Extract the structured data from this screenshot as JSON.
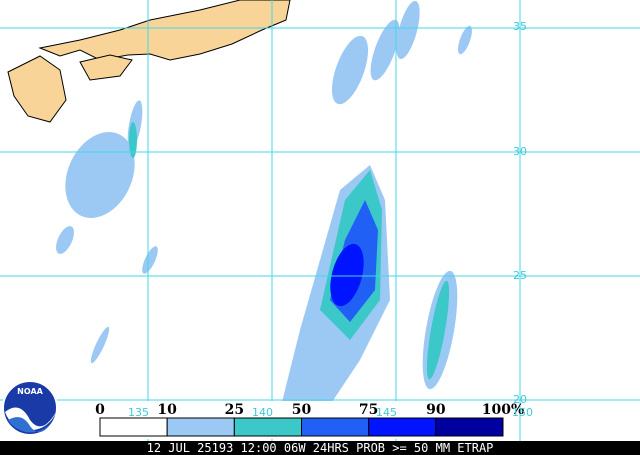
{
  "map": {
    "lat_labels": [
      "35",
      "30",
      "25",
      "20"
    ],
    "lon_labels": [
      "135",
      "140",
      "145",
      "150"
    ]
  },
  "legend": {
    "labels": [
      "0",
      "10",
      "25",
      "50",
      "75",
      "90",
      "100%"
    ],
    "colors": [
      "#ffffff",
      "#9cc8f4",
      "#3cc8c8",
      "#2060f4",
      "#0014ff",
      "#0000a0"
    ]
  },
  "logo": "NOAA",
  "footer": "12 JUL 25193 12:00 06W 24HRS PROB >= 50 MM ETRAP"
}
